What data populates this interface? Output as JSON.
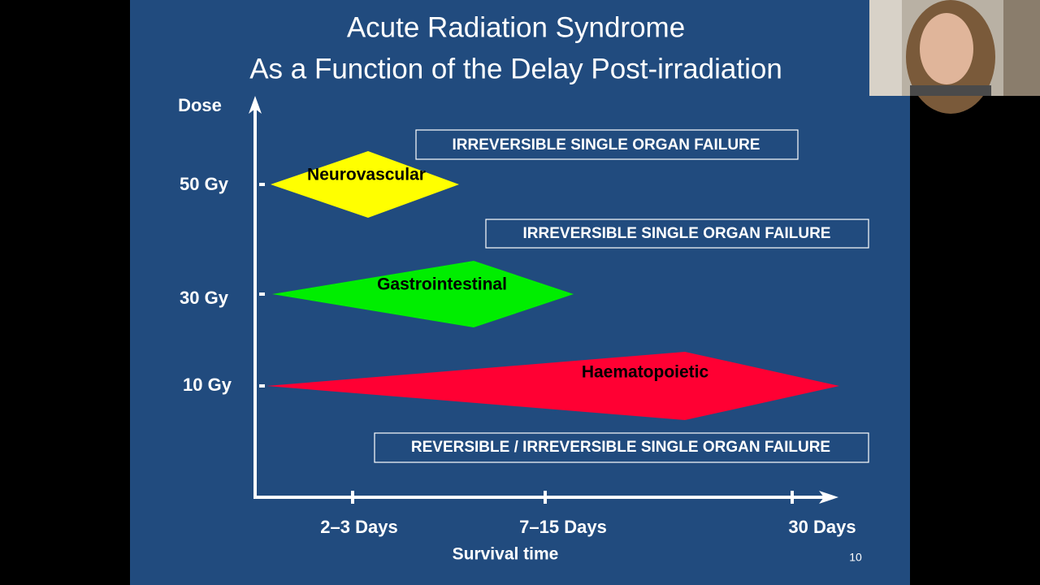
{
  "slide": {
    "title": [
      "Acute Radiation Syndrome",
      "As a Function of the Delay Post-irradiation"
    ],
    "y_axis_label": "Dose",
    "y_axis_ticks": [
      "50 Gy",
      "30 Gy",
      "10 Gy"
    ],
    "x_axis_ticks": [
      "2–3 Days",
      "7–15 Days",
      "30 Days"
    ],
    "x_axis_label": "Survival time",
    "regions": [
      "Neurovascular",
      "Gastrointestinal",
      "Haematopoietic"
    ],
    "boxes": [
      "IRREVERSIBLE SINGLE ORGAN FAILURE",
      "IRREVERSIBLE SINGLE ORGAN FAILURE",
      "REVERSIBLE / IRREVERSIBLE SINGLE ORGAN FAILURE"
    ],
    "page_number": "10"
  }
}
